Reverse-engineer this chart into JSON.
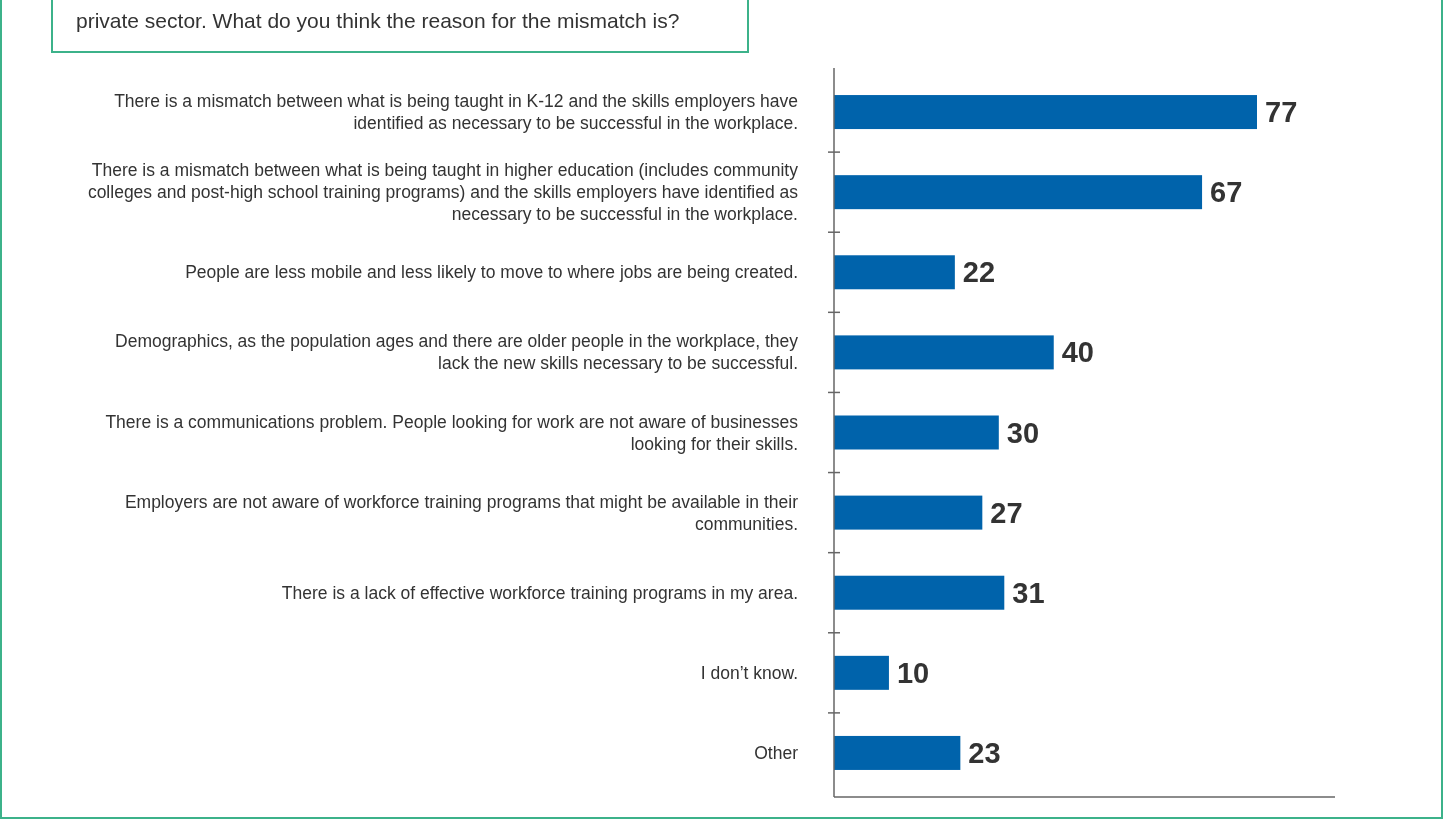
{
  "chart_data": {
    "type": "bar",
    "orientation": "horizontal",
    "title": "private sector. What do you think the reason for the mismatch is?",
    "categories": [
      "There is a mismatch between what is being taught in K-12 and the skills employers have identified as necessary to be successful in the workplace.",
      "There is a mismatch between what is being taught in higher education (includes community colleges and post-high school training programs) and the skills employers have identified as necessary to be successful in the workplace.",
      "People are less mobile and less likely to move to where jobs are being created.",
      "Demographics, as the population ages and there are older people in the workplace, they lack the new skills necessary to be successful.",
      "There is a communications problem. People looking for work are not aware of businesses looking for their skills.",
      "Employers are not aware of workforce training programs that might be available in their communities.",
      "There is a lack of effective workforce training programs in my area.",
      "I don’t know.",
      "Other"
    ],
    "values": [
      77,
      67,
      22,
      40,
      30,
      27,
      31,
      10,
      23
    ],
    "color": "#0063ab",
    "data_labels": true
  }
}
